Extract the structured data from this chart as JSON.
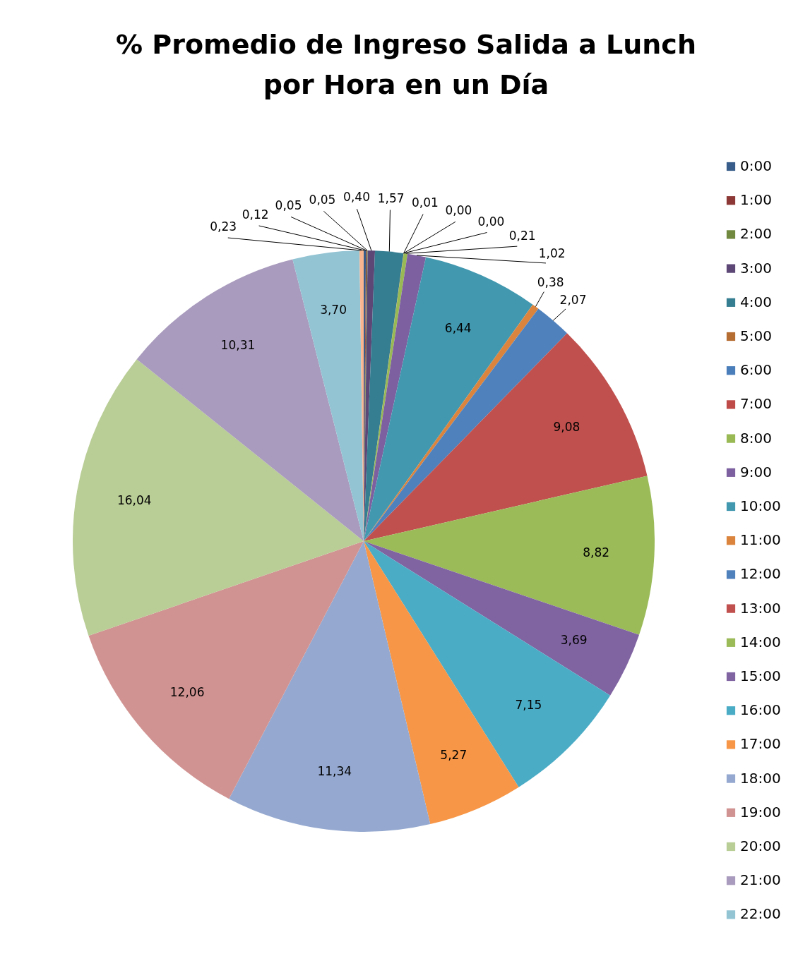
{
  "chart_data": {
    "type": "pie",
    "title": "% Promedio de Ingreso Salida a Lunch por Hora en un Día",
    "categories": [
      "0:00",
      "1:00",
      "2:00",
      "3:00",
      "4:00",
      "5:00",
      "6:00",
      "7:00",
      "8:00",
      "9:00",
      "10:00",
      "11:00",
      "12:00",
      "13:00",
      "14:00",
      "15:00",
      "16:00",
      "17:00",
      "18:00",
      "19:00",
      "20:00",
      "21:00",
      "22:00",
      null
    ],
    "values": [
      0.12,
      0.05,
      0.05,
      0.4,
      1.57,
      0.01,
      0.0,
      0.0,
      0.21,
      1.02,
      6.44,
      0.38,
      2.07,
      9.08,
      8.82,
      3.69,
      7.15,
      5.27,
      11.34,
      12.06,
      16.04,
      10.31,
      3.7,
      0.23
    ],
    "value_labels": [
      "0,12",
      "0,05",
      "0,05",
      "0,40",
      "1,57",
      "0,01",
      "0,00",
      "0,00",
      "0,21",
      "1,02",
      "6,44",
      "0,38",
      "2,07",
      "9,08",
      "8,82",
      "3,69",
      "7,15",
      "5,27",
      "11,34",
      "12,06",
      "16,04",
      "10,31",
      "3,70",
      "0,23"
    ],
    "colors": [
      "#385D8A",
      "#8C3836",
      "#71893F",
      "#5C4776",
      "#357D91",
      "#B66D31",
      "#4A7EBB",
      "#BE4B48",
      "#98B954",
      "#7D60A0",
      "#4198AF",
      "#DB843D",
      "#4F81BD",
      "#C0504D",
      "#9BBB59",
      "#8064A2",
      "#4BACC6",
      "#F79646",
      "#95A9D0",
      "#D19392",
      "#B9CD96",
      "#A99BBD",
      "#93C4D4",
      "#F9B590"
    ],
    "legend": "right"
  }
}
